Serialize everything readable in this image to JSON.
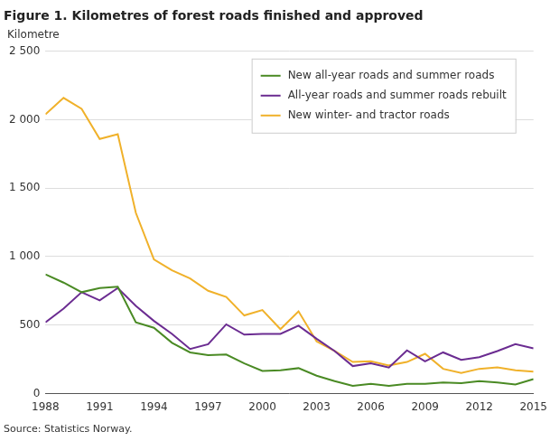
{
  "chart_data": {
    "type": "line",
    "title": "Figure 1. Kilometres of forest roads finished and approved",
    "y_label": "Kilometre",
    "source": "Source: Statistics Norway.",
    "x": [
      1988,
      1989,
      1990,
      1991,
      1992,
      1993,
      1994,
      1995,
      1996,
      1997,
      1998,
      1999,
      2000,
      2001,
      2002,
      2003,
      2004,
      2005,
      2006,
      2007,
      2008,
      2009,
      2010,
      2011,
      2012,
      2013,
      2014,
      2015
    ],
    "xlim": [
      1988,
      2015
    ],
    "xticks": [
      1988,
      1991,
      1994,
      1997,
      2000,
      2003,
      2006,
      2009,
      2012,
      2015
    ],
    "ylim": [
      0,
      2500
    ],
    "yticks": [
      0,
      500,
      {
        "value": 1000,
        "label": "1 000"
      },
      {
        "value": 1500,
        "label": "1 500"
      },
      {
        "value": 2000,
        "label": "2 000"
      },
      {
        "value": 2500,
        "label": "2 500"
      }
    ],
    "grid": true,
    "legend": "top-right",
    "series": [
      {
        "name": "New all-year roads and summer roads",
        "color": "#4a8a24",
        "values": [
          870,
          810,
          740,
          770,
          780,
          520,
          480,
          370,
          300,
          280,
          285,
          220,
          165,
          170,
          185,
          130,
          90,
          55,
          70,
          55,
          70,
          70,
          80,
          75,
          90,
          80,
          65,
          105
        ]
      },
      {
        "name": "All-year roads and summer roads rebuilt",
        "color": "#6b2c91",
        "values": [
          520,
          620,
          740,
          680,
          770,
          640,
          530,
          435,
          325,
          360,
          505,
          430,
          435,
          435,
          495,
          400,
          310,
          200,
          220,
          190,
          315,
          235,
          300,
          245,
          265,
          310,
          360,
          330
        ]
      },
      {
        "name": "New winter- and tractor roads",
        "color": "#f0b12a",
        "values": [
          2040,
          2160,
          2080,
          1860,
          1895,
          1320,
          980,
          900,
          840,
          750,
          705,
          570,
          610,
          470,
          600,
          380,
          310,
          230,
          235,
          205,
          230,
          290,
          180,
          150,
          180,
          190,
          170,
          160
        ]
      }
    ]
  }
}
